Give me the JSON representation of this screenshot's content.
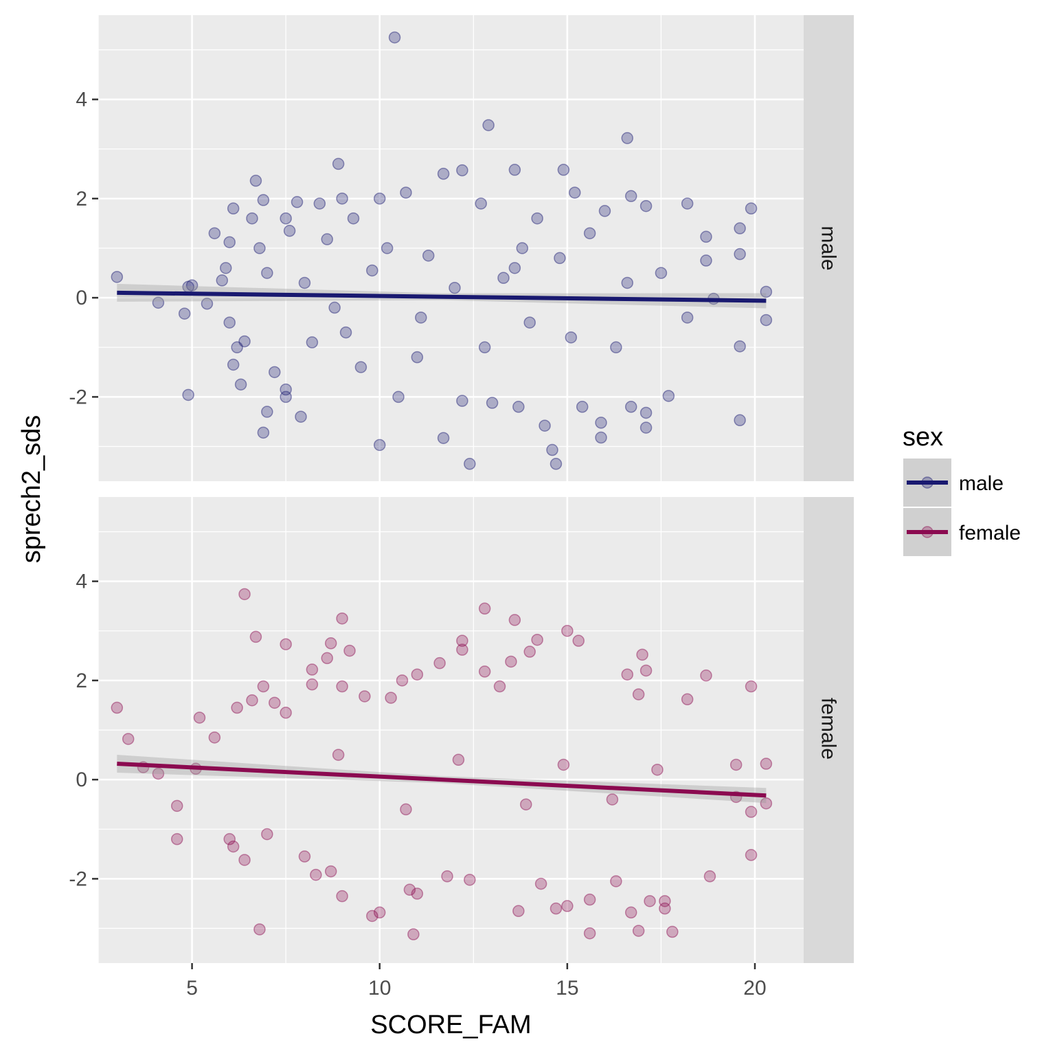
{
  "chart_data": {
    "type": "scatter",
    "title": "",
    "xlabel": "SCORE_FAM",
    "ylabel": "sprech2_sds",
    "xlim": [
      2.5,
      21.3
    ],
    "ylim": [
      -3.7,
      5.7
    ],
    "x_ticks": [
      5,
      10,
      15,
      20
    ],
    "y_ticks": [
      -2,
      0,
      2,
      4
    ],
    "grid": true,
    "facets": [
      "male",
      "female"
    ],
    "legend": {
      "title": "sex",
      "position": "right",
      "entries": [
        "male",
        "female"
      ]
    },
    "series": [
      {
        "name": "male",
        "color": "#191970",
        "trend": {
          "x": [
            3,
            20.3
          ],
          "y": [
            0.1,
            -0.06
          ]
        },
        "points_note": "dense cloud",
        "points": [
          [
            3.0,
            0.42
          ],
          [
            4.1,
            -0.1
          ],
          [
            4.8,
            -0.32
          ],
          [
            4.9,
            0.22
          ],
          [
            5.0,
            0.25
          ],
          [
            4.9,
            -1.96
          ],
          [
            5.4,
            -0.12
          ],
          [
            5.6,
            1.3
          ],
          [
            5.8,
            0.35
          ],
          [
            6.0,
            1.12
          ],
          [
            6.1,
            1.8
          ],
          [
            5.9,
            0.6
          ],
          [
            6.0,
            -0.5
          ],
          [
            6.2,
            -1.0
          ],
          [
            6.1,
            -1.35
          ],
          [
            6.4,
            -0.88
          ],
          [
            6.3,
            -1.75
          ],
          [
            6.6,
            1.6
          ],
          [
            6.7,
            2.36
          ],
          [
            6.8,
            1.0
          ],
          [
            6.9,
            1.97
          ],
          [
            7.0,
            0.5
          ],
          [
            6.9,
            -2.72
          ],
          [
            7.0,
            -2.3
          ],
          [
            7.2,
            -1.5
          ],
          [
            7.5,
            1.6
          ],
          [
            7.6,
            1.35
          ],
          [
            7.5,
            -2.0
          ],
          [
            7.5,
            -1.85
          ],
          [
            7.9,
            -2.4
          ],
          [
            7.8,
            1.93
          ],
          [
            8.0,
            0.3
          ],
          [
            8.2,
            -0.9
          ],
          [
            8.4,
            1.9
          ],
          [
            8.6,
            1.18
          ],
          [
            8.9,
            2.7
          ],
          [
            8.8,
            -0.2
          ],
          [
            9.0,
            2.0
          ],
          [
            9.3,
            1.6
          ],
          [
            9.5,
            -1.4
          ],
          [
            9.8,
            0.55
          ],
          [
            10.0,
            2.0
          ],
          [
            10.0,
            -2.97
          ],
          [
            10.2,
            1.0
          ],
          [
            10.4,
            5.25
          ],
          [
            10.5,
            -2.0
          ],
          [
            10.7,
            2.12
          ],
          [
            11.0,
            -1.2
          ],
          [
            11.3,
            0.85
          ],
          [
            11.7,
            2.5
          ],
          [
            11.7,
            -2.83
          ],
          [
            12.0,
            0.2
          ],
          [
            12.2,
            2.57
          ],
          [
            12.2,
            -2.08
          ],
          [
            12.4,
            -3.35
          ],
          [
            12.7,
            1.9
          ],
          [
            12.9,
            3.48
          ],
          [
            12.8,
            -1.0
          ],
          [
            13.0,
            -2.12
          ],
          [
            13.3,
            0.4
          ],
          [
            13.6,
            2.58
          ],
          [
            13.7,
            -2.2
          ],
          [
            13.8,
            1.0
          ],
          [
            14.0,
            -0.5
          ],
          [
            14.2,
            1.6
          ],
          [
            14.4,
            -2.58
          ],
          [
            14.6,
            -3.07
          ],
          [
            14.7,
            -3.35
          ],
          [
            14.8,
            0.8
          ],
          [
            14.9,
            2.58
          ],
          [
            15.2,
            2.12
          ],
          [
            15.4,
            -2.2
          ],
          [
            15.6,
            1.3
          ],
          [
            15.9,
            -2.52
          ],
          [
            15.9,
            -2.82
          ],
          [
            16.0,
            1.75
          ],
          [
            16.3,
            -1.0
          ],
          [
            16.6,
            3.22
          ],
          [
            16.7,
            2.05
          ],
          [
            16.7,
            -2.2
          ],
          [
            17.1,
            1.85
          ],
          [
            17.1,
            -2.62
          ],
          [
            17.1,
            -2.32
          ],
          [
            17.5,
            0.5
          ],
          [
            17.7,
            -1.98
          ],
          [
            18.2,
            1.9
          ],
          [
            18.2,
            -0.4
          ],
          [
            18.7,
            1.23
          ],
          [
            18.7,
            0.75
          ],
          [
            18.9,
            -0.02
          ],
          [
            19.6,
            1.4
          ],
          [
            19.6,
            0.88
          ],
          [
            19.6,
            -0.98
          ],
          [
            19.6,
            -2.47
          ],
          [
            19.9,
            1.8
          ],
          [
            20.3,
            0.12
          ],
          [
            20.3,
            -0.45
          ],
          [
            9.1,
            -0.7
          ],
          [
            11.1,
            -0.4
          ],
          [
            13.6,
            0.6
          ],
          [
            15.1,
            -0.8
          ],
          [
            16.6,
            0.3
          ]
        ]
      },
      {
        "name": "female",
        "color": "#8b0a50",
        "trend": {
          "x": [
            3,
            20.3
          ],
          "y": [
            0.32,
            -0.32
          ]
        },
        "points_note": "dense cloud",
        "points": [
          [
            3.0,
            1.45
          ],
          [
            3.3,
            0.82
          ],
          [
            3.7,
            0.25
          ],
          [
            4.1,
            0.12
          ],
          [
            4.6,
            -0.53
          ],
          [
            4.6,
            -1.2
          ],
          [
            5.1,
            0.22
          ],
          [
            5.2,
            1.25
          ],
          [
            5.6,
            0.85
          ],
          [
            6.0,
            -1.2
          ],
          [
            6.1,
            -1.35
          ],
          [
            6.2,
            1.45
          ],
          [
            6.4,
            3.74
          ],
          [
            6.4,
            -1.62
          ],
          [
            6.6,
            1.6
          ],
          [
            6.7,
            2.88
          ],
          [
            6.8,
            -3.02
          ],
          [
            6.9,
            1.88
          ],
          [
            7.0,
            -1.1
          ],
          [
            7.2,
            1.55
          ],
          [
            7.5,
            2.73
          ],
          [
            7.5,
            1.35
          ],
          [
            8.0,
            -1.55
          ],
          [
            8.2,
            2.22
          ],
          [
            8.2,
            1.92
          ],
          [
            8.3,
            -1.92
          ],
          [
            8.6,
            2.45
          ],
          [
            8.7,
            2.75
          ],
          [
            8.7,
            -1.85
          ],
          [
            9.0,
            3.25
          ],
          [
            9.0,
            1.88
          ],
          [
            9.0,
            -2.35
          ],
          [
            9.2,
            2.6
          ],
          [
            9.6,
            1.68
          ],
          [
            9.8,
            -2.75
          ],
          [
            10.0,
            -2.68
          ],
          [
            10.3,
            1.65
          ],
          [
            10.6,
            2.0
          ],
          [
            10.8,
            -2.22
          ],
          [
            10.9,
            -3.12
          ],
          [
            11.0,
            2.12
          ],
          [
            11.0,
            -2.3
          ],
          [
            11.6,
            2.35
          ],
          [
            11.8,
            -1.95
          ],
          [
            12.2,
            2.8
          ],
          [
            12.2,
            2.62
          ],
          [
            12.4,
            -2.02
          ],
          [
            12.8,
            3.45
          ],
          [
            12.8,
            2.18
          ],
          [
            13.2,
            1.88
          ],
          [
            13.5,
            2.38
          ],
          [
            13.6,
            3.22
          ],
          [
            13.7,
            -2.65
          ],
          [
            14.0,
            2.58
          ],
          [
            14.2,
            2.82
          ],
          [
            14.3,
            -2.1
          ],
          [
            14.7,
            -2.6
          ],
          [
            15.0,
            3.0
          ],
          [
            15.0,
            -2.55
          ],
          [
            15.3,
            2.8
          ],
          [
            15.6,
            -3.1
          ],
          [
            15.6,
            -2.42
          ],
          [
            16.3,
            -2.05
          ],
          [
            16.6,
            2.12
          ],
          [
            16.7,
            -2.68
          ],
          [
            16.9,
            1.72
          ],
          [
            16.9,
            -3.05
          ],
          [
            17.0,
            2.52
          ],
          [
            17.1,
            2.2
          ],
          [
            17.2,
            -2.45
          ],
          [
            17.6,
            -2.6
          ],
          [
            17.6,
            -2.45
          ],
          [
            17.8,
            -3.07
          ],
          [
            18.2,
            1.62
          ],
          [
            18.7,
            2.1
          ],
          [
            18.8,
            -1.95
          ],
          [
            19.5,
            0.3
          ],
          [
            19.5,
            -0.35
          ],
          [
            19.9,
            1.88
          ],
          [
            19.9,
            -0.65
          ],
          [
            19.9,
            -1.52
          ],
          [
            20.3,
            0.32
          ],
          [
            20.3,
            -0.48
          ],
          [
            8.9,
            0.5
          ],
          [
            10.7,
            -0.6
          ],
          [
            12.1,
            0.4
          ],
          [
            13.9,
            -0.5
          ],
          [
            14.9,
            0.3
          ],
          [
            16.2,
            -0.4
          ],
          [
            17.4,
            0.2
          ]
        ]
      }
    ]
  }
}
